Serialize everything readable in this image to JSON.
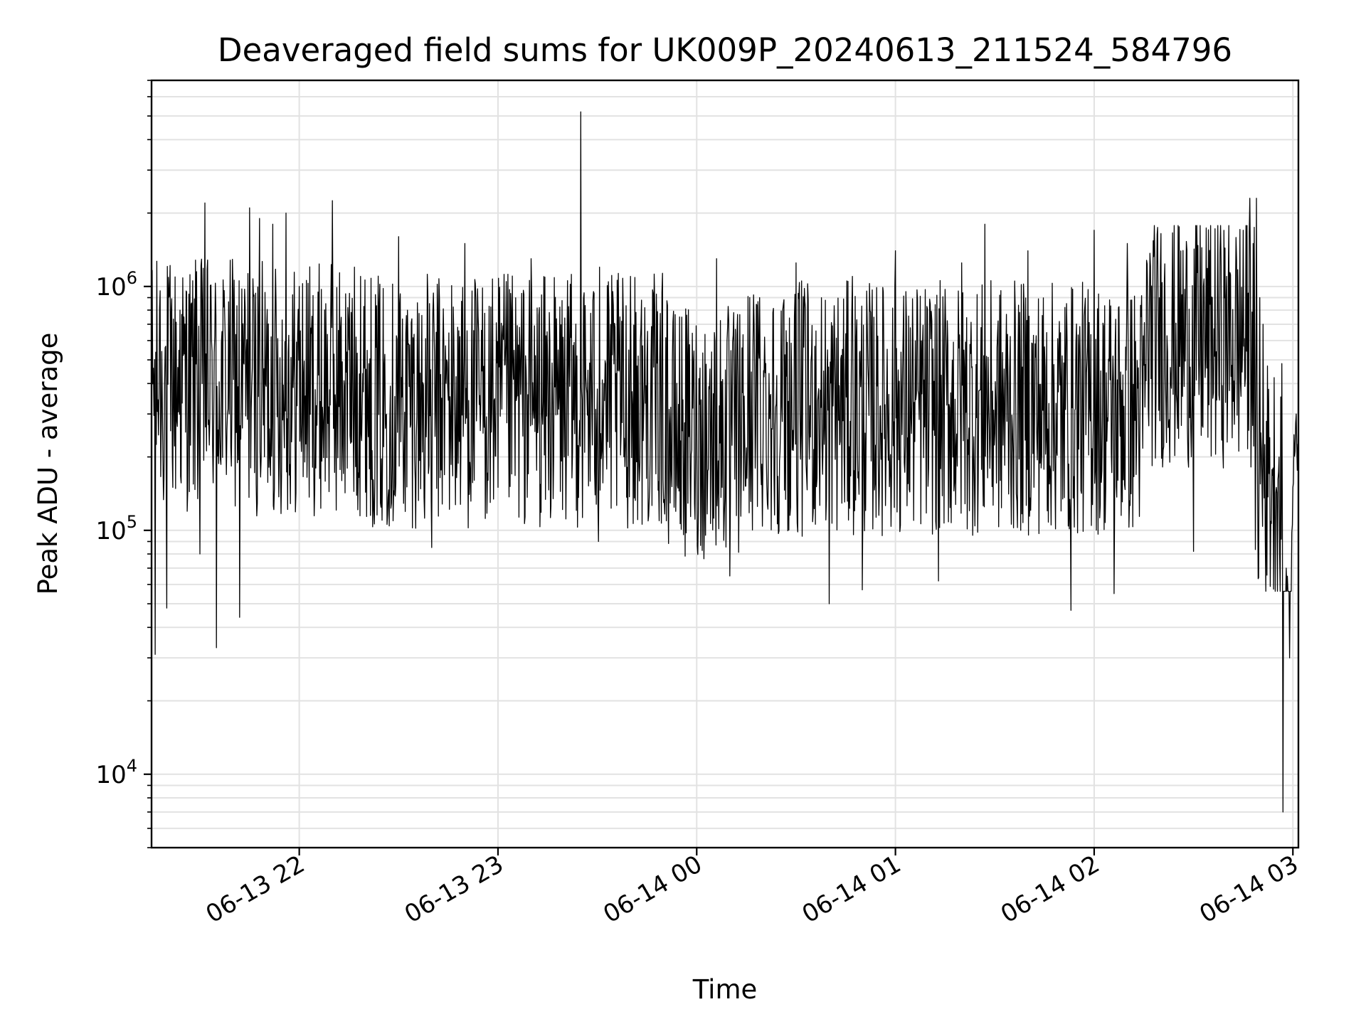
{
  "chart_data": {
    "type": "line",
    "title": "Deaveraged field sums for UK009P_20240613_211524_584796",
    "xlabel": "Time",
    "ylabel": "Peak ADU - average",
    "x_scale": "time",
    "y_scale": "log",
    "xlim": [
      "2024-06-13 21:15:24",
      "2024-06-14 03:01:40"
    ],
    "ylim": [
      5000,
      7000000
    ],
    "x_ticks": [
      "06-13 22",
      "06-13 23",
      "06-14 00",
      "06-14 01",
      "06-14 02",
      "06-14 03"
    ],
    "y_ticks": [
      {
        "base": "10",
        "exp": "4",
        "value": 10000
      },
      {
        "base": "10",
        "exp": "5",
        "value": 100000
      },
      {
        "base": "10",
        "exp": "6",
        "value": 1000000
      }
    ],
    "grid": true,
    "line_color": "#000000",
    "series": [
      {
        "x": [
          "2024-06-13 21:15:24",
          "2024-06-13 21:16:30",
          "2024-06-13 21:18:00",
          "2024-06-13 21:20:00",
          "2024-06-13 21:24:00",
          "2024-06-13 21:26:00",
          "2024-06-13 21:29:00",
          "2024-06-13 21:30:00",
          "2024-06-13 21:31:30",
          "2024-06-13 21:35:00",
          "2024-06-13 21:39:00",
          "2024-06-13 21:42:00",
          "2024-06-13 21:45:00",
          "2024-06-13 21:48:00",
          "2024-06-13 21:52:00",
          "2024-06-13 21:56:00",
          "2024-06-13 22:00:00",
          "2024-06-13 22:05:00",
          "2024-06-13 22:10:00",
          "2024-06-13 22:15:00",
          "2024-06-13 22:18:30",
          "2024-06-13 22:25:00",
          "2024-06-13 22:30:00",
          "2024-06-13 22:40:00",
          "2024-06-13 22:50:00",
          "2024-06-13 23:00:00",
          "2024-06-13 23:10:00",
          "2024-06-13 23:20:00",
          "2024-06-13 23:25:00",
          "2024-06-13 23:30:00",
          "2024-06-13 23:30:20",
          "2024-06-13 23:30:40",
          "2024-06-13 23:32:00",
          "2024-06-13 23:40:00",
          "2024-06-13 23:50:00",
          "2024-06-14 00:00:00",
          "2024-06-14 00:06:00",
          "2024-06-14 00:10:00",
          "2024-06-14 00:19:00",
          "2024-06-14 00:20:00",
          "2024-06-14 00:30:00",
          "2024-06-14 00:40:00",
          "2024-06-14 00:47:00",
          "2024-06-14 00:50:00",
          "2024-06-14 01:00:00",
          "2024-06-14 01:10:00",
          "2024-06-14 01:13:00",
          "2024-06-14 01:20:00",
          "2024-06-14 01:27:00",
          "2024-06-14 01:30:00",
          "2024-06-14 01:40:00",
          "2024-06-14 01:50:00",
          "2024-06-14 01:53:00",
          "2024-06-14 02:00:00",
          "2024-06-14 02:06:00",
          "2024-06-14 02:10:00",
          "2024-06-14 02:20:00",
          "2024-06-14 02:30:00",
          "2024-06-14 02:40:00",
          "2024-06-14 02:45:00",
          "2024-06-14 02:47:00",
          "2024-06-14 02:48:00",
          "2024-06-14 02:49:00",
          "2024-06-14 02:50:00",
          "2024-06-14 02:51:00",
          "2024-06-14 02:52:00",
          "2024-06-14 02:53:00",
          "2024-06-14 02:54:00",
          "2024-06-14 02:55:00",
          "2024-06-14 02:56:00",
          "2024-06-14 02:57:00",
          "2024-06-14 02:58:00",
          "2024-06-14 02:59:00",
          "2024-06-14 03:00:00",
          "2024-06-14 03:01:00",
          "2024-06-14 03:01:40"
        ],
        "y": [
          300000,
          31000,
          960000,
          48000,
          800000,
          950000,
          1150000,
          80000,
          2200000,
          33000,
          650000,
          44000,
          2100000,
          1900000,
          1800000,
          2000000,
          1000000,
          180000,
          2250000,
          550000,
          1100000,
          110000,
          1600000,
          85000,
          1500000,
          150000,
          1300000,
          200000,
          5200000,
          380000,
          90000,
          1200000,
          400000,
          1100000,
          130000,
          300000,
          1300000,
          65000,
          900000,
          200000,
          1250000,
          50000,
          1100000,
          57000,
          1400000,
          180000,
          62000,
          1250000,
          1800000,
          250000,
          1400000,
          120000,
          47000,
          1700000,
          55000,
          1500000,
          1200000,
          82000,
          1100000,
          1700000,
          2300000,
          1500000,
          2300000,
          900000,
          700000,
          280000,
          240000,
          180000,
          150000,
          80000,
          7000,
          70000,
          30000,
          150000,
          300000,
          170000
        ]
      }
    ]
  }
}
